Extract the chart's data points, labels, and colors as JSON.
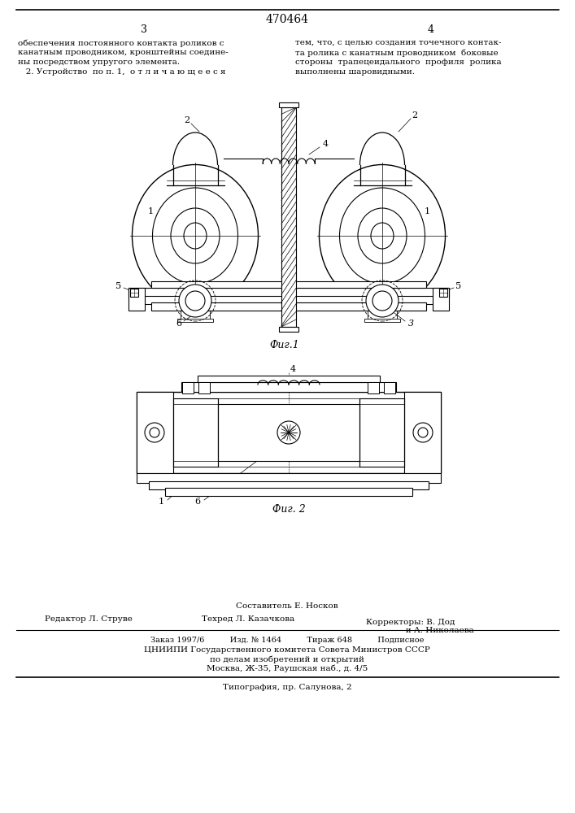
{
  "patent_number": "470464",
  "page_numbers": [
    "3",
    "4"
  ],
  "text_col1": "обеспечения постоянного контакта роликов с\nканатным проводником, кронштейны соедине-\nны посредством упругого элемента.\n   2. Устройство  по п. 1,  о т л и ч а ю щ е е с я",
  "text_col2": "тем, что, с целью создания точечного контак-\nта ролика с канатным проводником  боковые\nстороны  трапецеидального  профиля  ролика\nвыполнены шаровидными.",
  "fig1_caption": "Фиг.1",
  "fig2_caption": "Фиг. 2",
  "footer_line1": "Составитель Е. Носков",
  "footer_col1_label": "Редактор Л. Струве",
  "footer_col2_label": "Техред Л. Казачкова",
  "footer_col3_label": "Корректоры: В. Дод\n               и А. Николаева",
  "footer_line2": "Заказ 1997/6          Изд. № 1464          Тираж 648          Подписное",
  "footer_line3": "ЦНИИПИ Государственного комитета Совета Министров СССР",
  "footer_line4": "по делам изобретений и открытий",
  "footer_line5": "Москва, Ж-35, Раушская наб., д. 4/5",
  "footer_line6": "Типография, пр. Салунова, 2",
  "bg_color": "#ffffff"
}
